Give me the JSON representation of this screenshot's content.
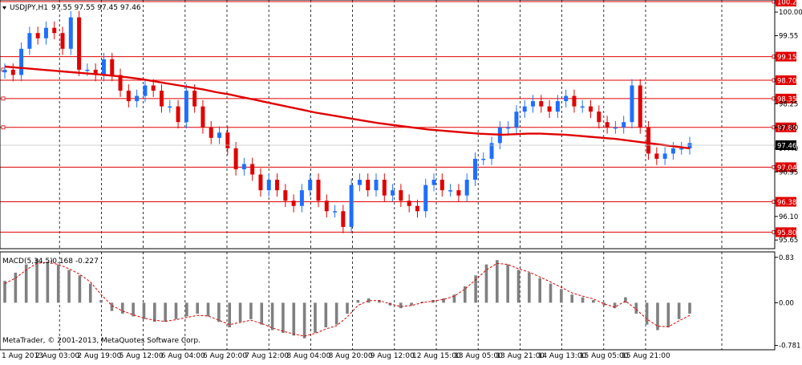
{
  "header": {
    "symbol_tf": "USDJPY,H1",
    "ohlc": "97.55 97.55 97.45 97.46"
  },
  "macd_header": {
    "name": "MACD(5,34,5)",
    "values": "-0.168 -0.227"
  },
  "copyright": "MetaTrader, © 2001-2013, MetaQuotes Software Corp.",
  "colors": {
    "background": "#ffffff",
    "grid": "#000000",
    "bull_candle": "#1e6fff",
    "bear_candle": "#e00000",
    "moving_average": "#e00000",
    "level_line": "#e00000",
    "macd_histogram": "#808080",
    "signal_line": "#e00000"
  },
  "chart_data": [
    {
      "type": "candlestick",
      "instrument": "USDJPY",
      "timeframe": "H1",
      "ylim": [
        95.5,
        100.2
      ],
      "price_axis_ticks": [
        "100.00",
        "99.55",
        "98.25",
        "97.80",
        "97.40",
        "96.95",
        "96.10",
        "95.65"
      ],
      "x_tick_labels": [
        "1 Aug 2013",
        "2 Aug 03:00",
        "2 Aug 19:00",
        "5 Aug 12:00",
        "6 Aug 04:00",
        "6 Aug 20:00",
        "7 Aug 12:00",
        "8 Aug 04:00",
        "8 Aug 20:00",
        "9 Aug 12:00",
        "12 Aug 15:00",
        "13 Aug 05:00",
        "13 Aug 21:00",
        "14 Aug 13:00",
        "15 Aug 05:00",
        "15 Aug 21:00"
      ],
      "horizontal_levels": [
        {
          "label": "100.20",
          "value": 100.2
        },
        {
          "label": "99.15",
          "value": 99.15
        },
        {
          "label": "98.70",
          "value": 98.7
        },
        {
          "label": "98.35",
          "value": 98.35
        },
        {
          "label": "97.80",
          "value": 97.8
        },
        {
          "label": "97.04",
          "value": 97.04
        },
        {
          "label": "96.38",
          "value": 96.38
        },
        {
          "label": "95.80",
          "value": 95.8
        }
      ],
      "current_price": {
        "label": "97.46",
        "value": 97.46
      },
      "close_path": [
        98.9,
        98.8,
        99.3,
        99.6,
        99.5,
        99.7,
        99.6,
        99.3,
        99.9,
        98.9,
        98.9,
        98.8,
        99.1,
        98.8,
        98.5,
        98.3,
        98.4,
        98.6,
        98.5,
        98.2,
        98.2,
        97.9,
        98.5,
        98.2,
        97.8,
        97.6,
        97.7,
        97.4,
        97.0,
        97.1,
        96.9,
        96.6,
        96.8,
        96.6,
        96.4,
        96.3,
        96.6,
        96.8,
        96.4,
        96.2,
        96.2,
        95.9,
        96.7,
        96.8,
        96.6,
        96.8,
        96.5,
        96.6,
        96.4,
        96.3,
        96.2,
        96.7,
        96.8,
        96.6,
        96.6,
        96.5,
        96.8,
        97.2,
        97.2,
        97.5,
        97.8,
        97.8,
        98.1,
        98.2,
        98.3,
        98.2,
        98.1,
        98.3,
        98.4,
        98.2,
        98.2,
        98.1,
        97.9,
        97.8,
        97.8,
        97.9,
        98.6,
        97.8,
        97.3,
        97.2,
        97.3,
        97.4,
        97.4,
        97.5
      ],
      "moving_average_path": [
        98.96,
        98.94,
        98.92,
        98.9,
        98.88,
        98.86,
        98.84,
        98.82,
        98.8,
        98.78,
        98.75,
        98.72,
        98.68,
        98.64,
        98.6,
        98.56,
        98.52,
        98.47,
        98.43,
        98.38,
        98.33,
        98.28,
        98.23,
        98.18,
        98.13,
        98.08,
        98.04,
        98.0,
        97.96,
        97.92,
        97.88,
        97.85,
        97.82,
        97.79,
        97.76,
        97.74,
        97.72,
        97.7,
        97.68,
        97.67,
        97.66,
        97.67,
        97.68,
        97.68,
        97.67,
        97.66,
        97.64,
        97.62,
        97.6,
        97.58,
        97.55,
        97.52,
        97.49,
        97.46,
        97.43,
        97.4
      ]
    },
    {
      "type": "bar",
      "indicator": "MACD(5,34,5)",
      "main": -0.168,
      "signal": -0.227,
      "y_tick_labels": [
        "0.83",
        "0.00",
        "-0.781"
      ],
      "ylim": [
        -0.83,
        0.9
      ],
      "histogram_path": [
        0.4,
        0.55,
        0.7,
        0.8,
        0.75,
        0.7,
        0.6,
        0.5,
        0.35,
        0.05,
        -0.15,
        -0.2,
        -0.25,
        -0.3,
        -0.35,
        -0.35,
        -0.3,
        -0.25,
        -0.2,
        -0.25,
        -0.35,
        -0.45,
        -0.35,
        -0.3,
        -0.4,
        -0.5,
        -0.55,
        -0.6,
        -0.65,
        -0.55,
        -0.45,
        -0.4,
        -0.2,
        0.05,
        0.08,
        0.05,
        -0.05,
        -0.1,
        -0.05,
        0.02,
        0.05,
        0.08,
        0.15,
        0.3,
        0.5,
        0.7,
        0.78,
        0.7,
        0.6,
        0.55,
        0.45,
        0.35,
        0.25,
        0.15,
        0.1,
        0.05,
        -0.05,
        -0.1,
        0.1,
        -0.2,
        -0.4,
        -0.5,
        -0.45,
        -0.3,
        -0.2
      ],
      "signal_path": [
        0.35,
        0.45,
        0.6,
        0.72,
        0.74,
        0.7,
        0.62,
        0.52,
        0.38,
        0.15,
        -0.05,
        -0.15,
        -0.22,
        -0.28,
        -0.32,
        -0.34,
        -0.31,
        -0.27,
        -0.23,
        -0.24,
        -0.32,
        -0.4,
        -0.36,
        -0.32,
        -0.38,
        -0.46,
        -0.52,
        -0.57,
        -0.61,
        -0.56,
        -0.48,
        -0.42,
        -0.26,
        -0.05,
        0.04,
        0.04,
        -0.02,
        -0.07,
        -0.05,
        0.0,
        0.03,
        0.06,
        0.12,
        0.25,
        0.42,
        0.6,
        0.72,
        0.7,
        0.62,
        0.56,
        0.47,
        0.38,
        0.28,
        0.18,
        0.12,
        0.07,
        -0.02,
        -0.08,
        0.03,
        -0.12,
        -0.3,
        -0.43,
        -0.44,
        -0.33,
        -0.23
      ]
    }
  ]
}
